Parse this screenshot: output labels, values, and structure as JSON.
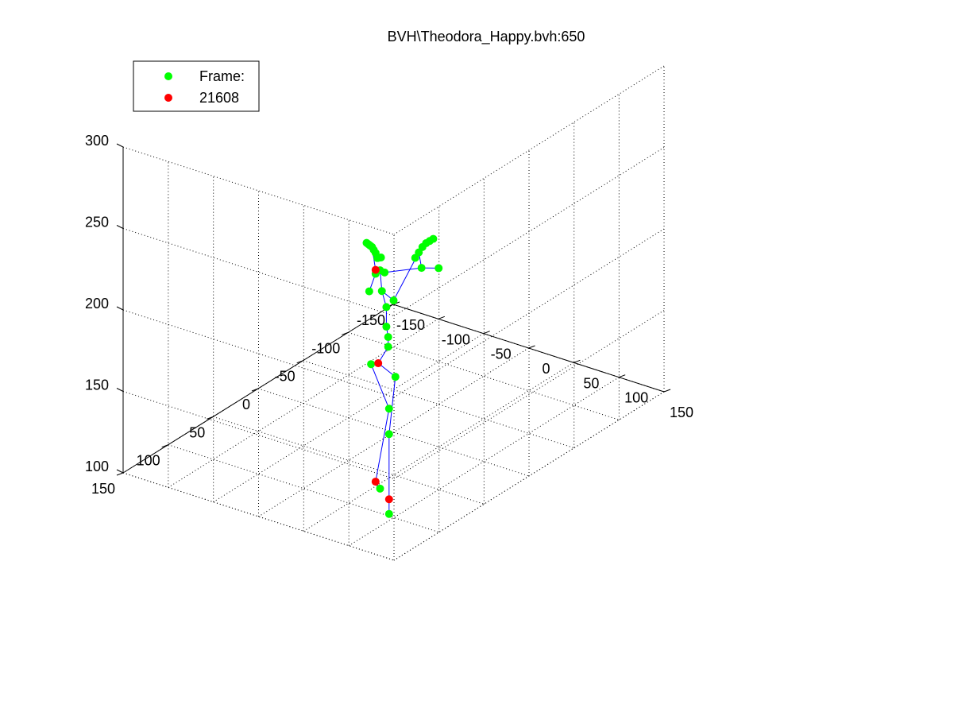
{
  "chart_data": {
    "type": "scatter",
    "title": "BVH\\Theodora_Happy.bvh:650",
    "legend": {
      "placement": "top-left",
      "entries": [
        {
          "label": "Frame:",
          "color": "#00ff00"
        },
        {
          "label": "21608",
          "color": "#ff0000"
        }
      ]
    },
    "grid": true,
    "axes": {
      "x": {
        "range": [
          -150,
          150
        ],
        "ticks": [
          -150,
          -100,
          -50,
          0,
          50,
          100,
          150
        ]
      },
      "y": {
        "range": [
          -150,
          150
        ],
        "ticks": [
          -150,
          -100,
          -50,
          0,
          50,
          100,
          150
        ]
      },
      "z": {
        "range": [
          100,
          300
        ],
        "ticks": [
          100,
          150,
          200,
          250,
          300
        ]
      }
    },
    "joints_green": [
      [
        -5,
        25,
        224
      ],
      [
        -4,
        24,
        223
      ],
      [
        -3,
        23,
        222
      ],
      [
        -2,
        22,
        221
      ],
      [
        -1,
        21,
        219
      ],
      [
        0,
        20,
        217
      ],
      [
        2,
        19,
        214
      ],
      [
        -8,
        10,
        209
      ],
      [
        -6,
        8,
        209
      ],
      [
        12,
        -20,
        209
      ],
      [
        14,
        -22,
        211
      ],
      [
        16,
        -24,
        212
      ],
      [
        18,
        -26,
        213
      ],
      [
        10,
        -18,
        206
      ],
      [
        8,
        -16,
        203
      ],
      [
        11,
        -20,
        196
      ],
      [
        20,
        -30,
        194
      ],
      [
        -5,
        10,
        202
      ],
      [
        -8,
        12,
        200
      ],
      [
        -3,
        7,
        200
      ],
      [
        -15,
        12,
        188
      ],
      [
        -8,
        5,
        187
      ],
      [
        2,
        2,
        182
      ],
      [
        -5,
        3,
        177
      ],
      [
        -5,
        3,
        165
      ],
      [
        -3,
        3,
        159
      ],
      [
        -3,
        3,
        153
      ],
      [
        -20,
        5,
        140
      ],
      [
        5,
        3,
        136
      ],
      [
        -10,
        -5,
        111
      ],
      [
        -5,
        0,
        98
      ],
      [
        -5,
        10,
        68
      ],
      [
        -5,
        0,
        49
      ]
    ],
    "joints_red": [
      [
        -5,
        15,
        204
      ],
      [
        -12,
        5,
        142
      ],
      [
        -5,
        15,
        74
      ],
      [
        -5,
        0,
        58
      ]
    ],
    "bones": [
      [
        [
          -3,
          3,
          153
        ],
        [
          -3,
          3,
          159
        ]
      ],
      [
        [
          -3,
          3,
          159
        ],
        [
          -5,
          3,
          165
        ]
      ],
      [
        [
          -5,
          3,
          165
        ],
        [
          -5,
          3,
          177
        ]
      ],
      [
        [
          -5,
          3,
          177
        ],
        [
          -8,
          5,
          187
        ]
      ],
      [
        [
          -8,
          5,
          187
        ],
        [
          -5,
          10,
          202
        ]
      ],
      [
        [
          -5,
          10,
          202
        ],
        [
          -5,
          15,
          204
        ]
      ],
      [
        [
          -5,
          10,
          202
        ],
        [
          -8,
          12,
          200
        ]
      ],
      [
        [
          -8,
          12,
          200
        ],
        [
          -15,
          12,
          188
        ]
      ],
      [
        [
          -5,
          10,
          202
        ],
        [
          -3,
          7,
          200
        ]
      ],
      [
        [
          -3,
          7,
          200
        ],
        [
          11,
          -20,
          196
        ]
      ],
      [
        [
          11,
          -20,
          196
        ],
        [
          10,
          -18,
          206
        ]
      ],
      [
        [
          10,
          -18,
          206
        ],
        [
          14,
          -22,
          211
        ]
      ],
      [
        [
          14,
          -22,
          211
        ],
        [
          18,
          -26,
          213
        ]
      ],
      [
        [
          11,
          -20,
          196
        ],
        [
          20,
          -30,
          194
        ]
      ],
      [
        [
          -8,
          5,
          187
        ],
        [
          2,
          2,
          182
        ]
      ],
      [
        [
          2,
          2,
          182
        ],
        [
          10,
          -18,
          206
        ]
      ],
      [
        [
          -5,
          15,
          204
        ],
        [
          -2,
          22,
          221
        ]
      ],
      [
        [
          -2,
          22,
          221
        ],
        [
          2,
          19,
          214
        ]
      ],
      [
        [
          -3,
          3,
          153
        ],
        [
          -12,
          5,
          142
        ]
      ],
      [
        [
          -12,
          5,
          142
        ],
        [
          -20,
          5,
          140
        ]
      ],
      [
        [
          -20,
          5,
          140
        ],
        [
          -10,
          -5,
          111
        ]
      ],
      [
        [
          -10,
          -5,
          111
        ],
        [
          -5,
          15,
          74
        ]
      ],
      [
        [
          -5,
          15,
          74
        ],
        [
          -5,
          10,
          68
        ]
      ],
      [
        [
          -12,
          5,
          142
        ],
        [
          5,
          3,
          136
        ]
      ],
      [
        [
          5,
          3,
          136
        ],
        [
          -5,
          0,
          98
        ]
      ],
      [
        [
          -5,
          0,
          98
        ],
        [
          -5,
          0,
          58
        ]
      ],
      [
        [
          -5,
          0,
          58
        ],
        [
          -5,
          0,
          49
        ]
      ]
    ]
  },
  "colors": {
    "green": "#00ff00",
    "red": "#ff0000",
    "bone": "#0000ff"
  }
}
